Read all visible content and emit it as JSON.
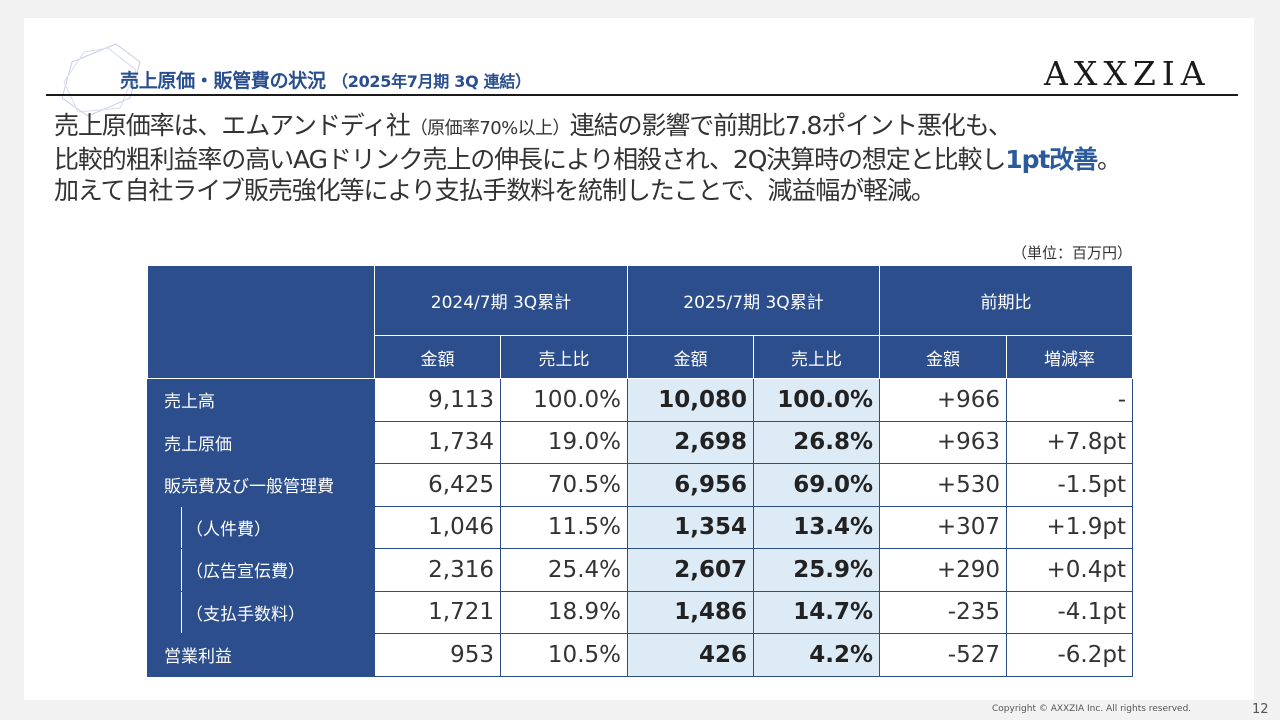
{
  "header": {
    "title": "売上原価・販管費の状況",
    "subtitle": "（2025年7月期 3Q 連結）",
    "logo_text": "AXXZIA"
  },
  "summary": {
    "line1_a": "売上原価率は、エムアンドディ社",
    "line1_small": "（原価率70%以上）",
    "line1_b": "連結の影響で前期比7.8ポイント悪化も、",
    "line2_a": "比較的粗利益率の高いAGドリンク売上の伸長により相殺され、2Q決算時の想定と比較し",
    "line2_em": "1pt改善",
    "line2_b": "。",
    "line3": "加えて自社ライブ販売強化等により支払手数料を統制したことで、減益幅が軽減。"
  },
  "unit_label": "（単位：百万円）",
  "table": {
    "headers": {
      "period_prev": "2024/7期 3Q累計",
      "period_cur": "2025/7期 3Q累計",
      "yoy": "前期比",
      "amount": "金額",
      "sales_ratio": "売上比",
      "change_rate": "増減率"
    },
    "rows": [
      {
        "label": "売上高",
        "prev_amount": "9,113",
        "prev_ratio": "100.0%",
        "cur_amount": "10,080",
        "cur_ratio": "100.0%",
        "yoy_amount": "+966",
        "yoy_rate": "-"
      },
      {
        "label": "売上原価",
        "prev_amount": "1,734",
        "prev_ratio": "19.0%",
        "cur_amount": "2,698",
        "cur_ratio": "26.8%",
        "yoy_amount": "+963",
        "yoy_rate": "+7.8pt"
      },
      {
        "label": "販売費及び一般管理費",
        "prev_amount": "6,425",
        "prev_ratio": "70.5%",
        "cur_amount": "6,956",
        "cur_ratio": "69.0%",
        "yoy_amount": "+530",
        "yoy_rate": "-1.5pt"
      },
      {
        "label": "（人件費）",
        "prev_amount": "1,046",
        "prev_ratio": "11.5%",
        "cur_amount": "1,354",
        "cur_ratio": "13.4%",
        "yoy_amount": "+307",
        "yoy_rate": "+1.9pt"
      },
      {
        "label": "（広告宣伝費）",
        "prev_amount": "2,316",
        "prev_ratio": "25.4%",
        "cur_amount": "2,607",
        "cur_ratio": "25.9%",
        "yoy_amount": "+290",
        "yoy_rate": "+0.4pt"
      },
      {
        "label": "（支払手数料）",
        "prev_amount": "1,721",
        "prev_ratio": "18.9%",
        "cur_amount": "1,486",
        "cur_ratio": "14.7%",
        "yoy_amount": "-235",
        "yoy_rate": "-4.1pt"
      },
      {
        "label": "営業利益",
        "prev_amount": "953",
        "prev_ratio": "10.5%",
        "cur_amount": "426",
        "cur_ratio": "4.2%",
        "yoy_amount": "-527",
        "yoy_rate": "-6.2pt"
      }
    ]
  },
  "footer": {
    "copyright": "Copyright © AXXZIA Inc. All rights reserved.",
    "page_number": "12"
  },
  "colors": {
    "header_navy": "#2d4e8c",
    "title_blue": "#2a4f8f",
    "highlight_cell": "#ddebf7",
    "accent_text": "#2a5a9c"
  }
}
